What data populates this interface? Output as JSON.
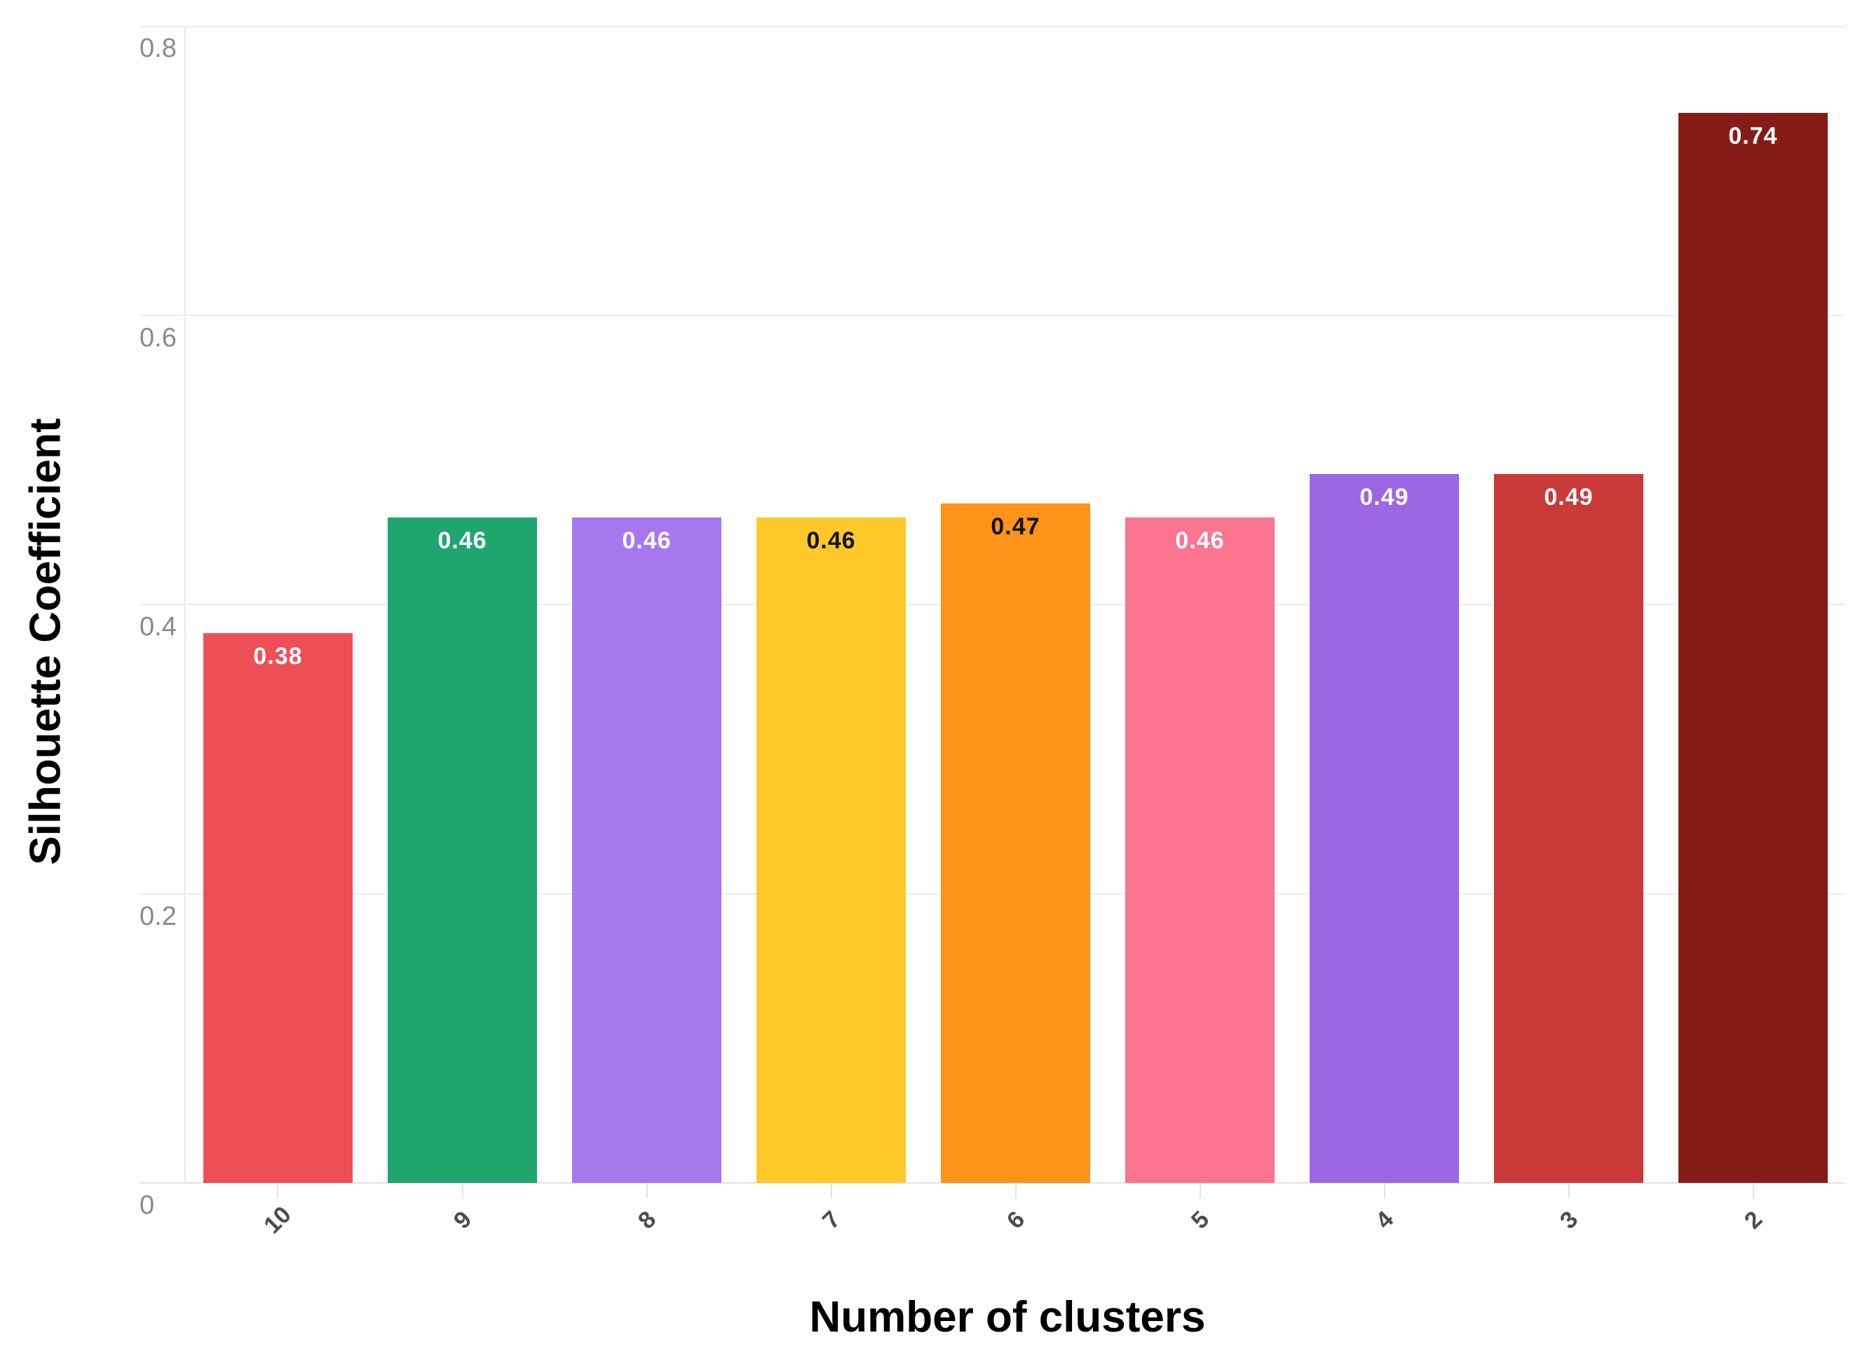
{
  "chart_data": {
    "type": "bar",
    "title": "",
    "xlabel": "Number of clusters",
    "ylabel": "Silhouette Coefficient",
    "categories": [
      "10",
      "9",
      "8",
      "7",
      "6",
      "5",
      "4",
      "3",
      "2"
    ],
    "values": [
      0.38,
      0.46,
      0.46,
      0.46,
      0.47,
      0.46,
      0.49,
      0.49,
      0.74
    ],
    "bar_labels": [
      "0.38",
      "0.46",
      "0.46",
      "0.46",
      "0.47",
      "0.46",
      "0.49",
      "0.49",
      "0.74"
    ],
    "bar_colors": [
      "#ee4f56",
      "#1fa56e",
      "#a678ee",
      "#fec829",
      "#fd9318",
      "#fb7490",
      "#9d66e3",
      "#c93a38",
      "#851c18"
    ],
    "bar_label_colors": [
      "#ffffff",
      "#ffffff",
      "#ffffff",
      "#131313",
      "#131313",
      "#ffffff",
      "#ffffff",
      "#ffffff",
      "#ffffff"
    ],
    "ylim": [
      0,
      0.8
    ],
    "yticks": [
      {
        "label": "0.8",
        "value": 0.8
      },
      {
        "label": "0.6",
        "value": 0.6
      },
      {
        "label": "0.4",
        "value": 0.4
      },
      {
        "label": "0.2",
        "value": 0.2
      },
      {
        "label": "0",
        "value": 0.0
      }
    ],
    "grid": "horizontal",
    "legend": "none",
    "x_label_rotation_deg": -45
  },
  "colors": {
    "background": "#ffffff",
    "gridline": "#ececec",
    "axis_line": "#e7e7e7",
    "tick_mark": "#e2e2e2",
    "ytick_label": "#8a8a8a",
    "xtick_label": "#4c4c4c",
    "axis_title": "#000000"
  }
}
